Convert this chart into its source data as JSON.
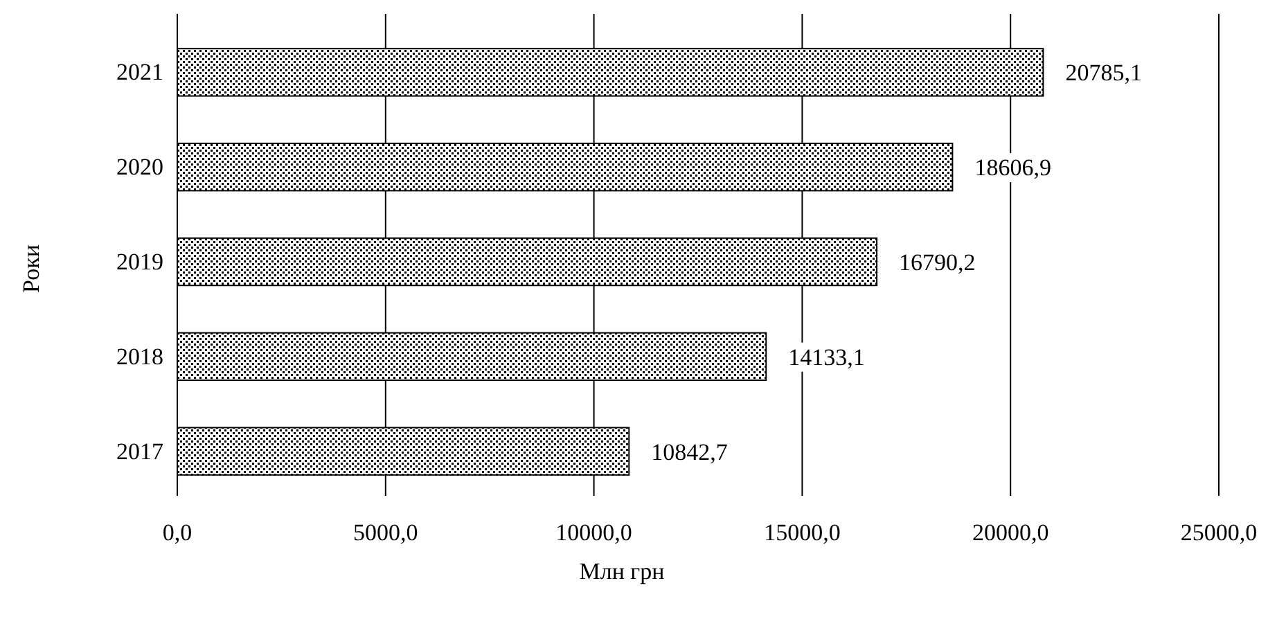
{
  "chart_data": {
    "type": "bar",
    "orientation": "horizontal",
    "xlabel": "Млн грн",
    "ylabel": "Роки",
    "categories": [
      "2021",
      "2020",
      "2019",
      "2018",
      "2017"
    ],
    "values": [
      20785.1,
      18606.9,
      16790.2,
      14133.1,
      10842.7
    ],
    "value_labels": [
      "20785,1",
      "18606,9",
      "16790,2",
      "14133,1",
      "10842,7"
    ],
    "color": "#000000",
    "xlim": [
      0,
      25000
    ],
    "xticks": [
      {
        "value": 0,
        "label": "0,0"
      },
      {
        "value": 5000,
        "label": "5000,0"
      },
      {
        "value": 10000,
        "label": "10000,0"
      },
      {
        "value": 15000,
        "label": "15000,0"
      },
      {
        "value": 20000,
        "label": "20000,0"
      },
      {
        "value": 25000,
        "label": "25000,0"
      }
    ],
    "grid": "x"
  }
}
